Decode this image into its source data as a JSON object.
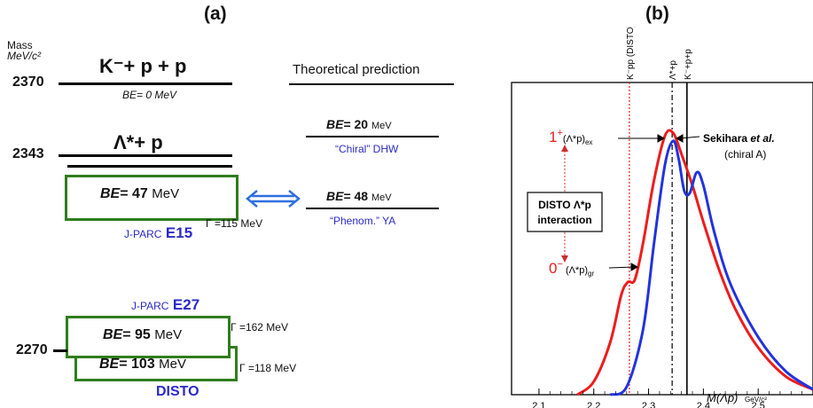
{
  "panel_a": {
    "label": "(a)",
    "mass_header_line1": "Mass",
    "mass_header_line2": "MeV/c²",
    "mass_2370": "2370",
    "mass_2343": "2343",
    "mass_2270": "2270",
    "kpp_title": "K⁻+ p + p",
    "kpp_be": "BE= 0 MeV",
    "lambda_title": "Λ*+ p",
    "e15_be_prefix": "BE",
    "e15_be_value": "= 47",
    "e15_be_unit": "MeV",
    "e15_name": "J-PARC",
    "e15_code": "E15",
    "e15_width": "Γ =115 MeV",
    "e27_name": "J-PARC",
    "e27_code": "E27",
    "e27_be_prefix": "BE",
    "e27_be_value": "= 95",
    "e27_be_unit": "MeV",
    "e27_width": "Γ =162 MeV",
    "disto_be_prefix": "BE",
    "disto_be_value": "= 103",
    "disto_be_unit": "MeV",
    "disto_width": "Γ =118 MeV",
    "disto_name": "DISTO",
    "theory_header": "Theoretical prediction",
    "chiral_be_prefix": "BE",
    "chiral_be_value": "= 20",
    "chiral_be_unit": "MeV",
    "chiral_name": "“Chiral” DHW",
    "phenom_be_prefix": "BE",
    "phenom_be_value": "= 48",
    "phenom_be_unit": "MeV",
    "phenom_name": "“Phenom.” YA",
    "colors": {
      "box": "#2f7d1e",
      "label": "#2a2ac8",
      "arrow": "#2f6fe0"
    }
  },
  "panel_b": {
    "label": "(b)",
    "top_labels": [
      "K⁻pp (DISTO)",
      "Λ*+p",
      "K⁻+p+p"
    ],
    "excited_label": "1⁺(Λ*p)ex",
    "ground_label": "0⁻ (Λ*p)gr",
    "disto_box_line1": "DISTO Λ*p",
    "disto_box_line2": "interaction",
    "sekihara_line1": "Sekihara et al.",
    "sekihara_line2": "(chiral A)",
    "xlabel": "M(Λp)",
    "xunit": "GeV/c²",
    "colors": {
      "red": "#ee1c1c",
      "blue": "#2233dd"
    }
  },
  "chart_data": {
    "type": "line",
    "xlabel": "M(Λp)",
    "xunit": "GeV/c²",
    "xlim": [
      2.05,
      2.6
    ],
    "x_ticks": [
      "2.1",
      "2.2",
      "2.3",
      "2.4",
      "2.5"
    ],
    "ylim": [
      0,
      1
    ],
    "vertical_markers": [
      {
        "name": "K⁻pp (DISTO)",
        "x": 2.265,
        "style": "dotted",
        "color": "#ee1c1c"
      },
      {
        "name": "Λ*+p",
        "x": 2.343,
        "style": "dash-dot",
        "color": "#000000"
      },
      {
        "name": "K⁻+p+p",
        "x": 2.37,
        "style": "solid",
        "color": "#000000"
      }
    ],
    "series": [
      {
        "color": "#ee1c1c",
        "x": [
          2.17,
          2.2,
          2.23,
          2.25,
          2.262,
          2.275,
          2.29,
          2.31,
          2.33,
          2.345,
          2.36,
          2.38,
          2.4,
          2.43,
          2.46,
          2.5,
          2.55,
          2.6
        ],
        "y": [
          0.0,
          0.05,
          0.2,
          0.38,
          0.43,
          0.44,
          0.58,
          0.82,
          0.99,
          1.0,
          0.92,
          0.8,
          0.66,
          0.47,
          0.32,
          0.18,
          0.07,
          0.02
        ]
      },
      {
        "color": "#2233dd",
        "x": [
          2.23,
          2.26,
          2.29,
          2.31,
          2.33,
          2.345,
          2.355,
          2.365,
          2.375,
          2.388,
          2.4,
          2.42,
          2.45,
          2.5,
          2.55,
          2.6
        ],
        "y": [
          0.0,
          0.03,
          0.25,
          0.58,
          0.88,
          0.97,
          0.9,
          0.78,
          0.77,
          0.85,
          0.8,
          0.62,
          0.42,
          0.22,
          0.09,
          0.02
        ]
      }
    ]
  }
}
